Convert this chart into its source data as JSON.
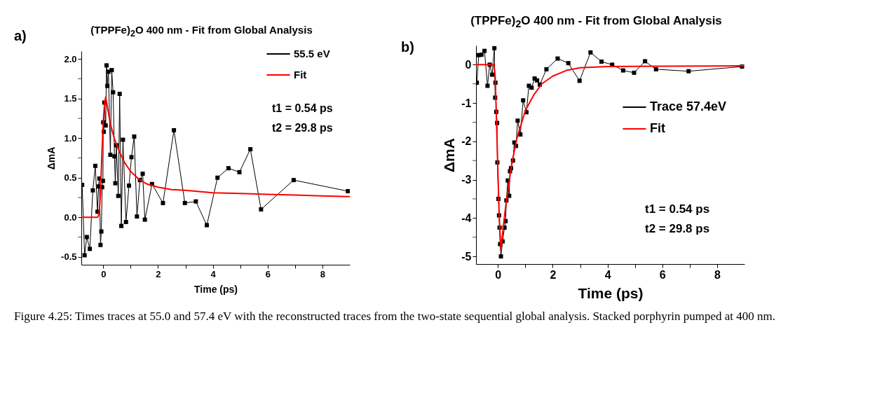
{
  "chart_data": [
    {
      "type": "line",
      "title": "(TPPFe)$_{2}$O 400 nm - Fit from Global Analysis",
      "ylabel": "ΔmA",
      "xlabel": "Time (ps)",
      "annotations": [
        "a)",
        "t1 = 0.54 ps",
        "t2 = 29.8 ps",
        "Figure 4.25: Times traces at 55.0 and 57.4 eV with the reconstructed traces from the two-state sequential global analysis. Stacked porphyrin pumped at 400 nm."
      ],
      "xlim": [
        -0.8,
        9
      ],
      "xticks": [
        0,
        {
          "value": 1,
          "label": null
        },
        2,
        {
          "value": 3,
          "label": null
        },
        4,
        {
          "value": 5,
          "label": null
        },
        6,
        {
          "value": 7,
          "label": null
        },
        8
      ],
      "ylim": [
        -0.6,
        2.1
      ],
      "yticks": [
        {
          "value": -0.5,
          "label": "-0.5"
        },
        {
          "value": -0.25,
          "label": null
        },
        {
          "value": 0,
          "label": "0.0"
        },
        {
          "value": 0.25,
          "label": null
        },
        {
          "value": 0.5,
          "label": "0.5"
        },
        {
          "value": 0.75,
          "label": null
        },
        {
          "value": 1,
          "label": "1.0"
        },
        {
          "value": 1.25,
          "label": null
        },
        {
          "value": 1.5,
          "label": "1.5"
        },
        {
          "value": 1.75,
          "label": null
        },
        {
          "value": 2,
          "label": "2.0"
        }
      ],
      "legend": "top right",
      "marker": "square",
      "grid": false,
      "series": [
        {
          "name": "55.5 eV",
          "color": "#000000",
          "x": [
            -0.77,
            -0.68,
            -0.6,
            -0.49,
            -0.38,
            -0.29,
            -0.21,
            -0.17,
            -0.14,
            -0.1,
            -0.07,
            -0.04,
            -0.01,
            0.0,
            0.02,
            0.04,
            0.09,
            0.12,
            0.15,
            0.19,
            0.26,
            0.31,
            0.36,
            0.41,
            0.44,
            0.48,
            0.55,
            0.6,
            0.66,
            0.72,
            0.83,
            0.94,
            1.03,
            1.13,
            1.23,
            1.34,
            1.44,
            1.52,
            1.78,
            2.18,
            2.58,
            2.98,
            3.38,
            3.78,
            4.17,
            4.57,
            4.97,
            5.37,
            5.76,
            6.95,
            8.93
          ],
          "values": [
            0.41,
            -0.48,
            -0.25,
            -0.4,
            0.34,
            0.65,
            0.07,
            0.39,
            0.49,
            -0.35,
            -0.18,
            0.38,
            0.46,
            1.2,
            1.08,
            1.45,
            1.16,
            1.92,
            1.66,
            1.84,
            0.79,
            1.86,
            1.58,
            0.77,
            0.43,
            0.91,
            0.27,
            1.56,
            -0.11,
            0.98,
            -0.06,
            0.4,
            0.76,
            1.02,
            0.01,
            0.47,
            0.55,
            -0.03,
            0.42,
            0.18,
            1.1,
            0.18,
            0.2,
            -0.1,
            0.5,
            0.62,
            0.57,
            0.86,
            0.1,
            0.47,
            0.33
          ]
        },
        {
          "name": "Fit",
          "color": "#ff0000",
          "marker": "none",
          "x": [
            -0.8,
            -0.2,
            -0.15,
            -0.1,
            -0.05,
            0,
            0.05,
            0.09,
            0.15,
            0.25,
            0.4,
            0.6,
            0.8,
            1.0,
            1.3,
            1.6,
            2,
            2.5,
            3,
            4,
            5,
            6,
            7,
            8,
            9
          ],
          "values": [
            0,
            0,
            0.05,
            0.3,
            0.8,
            1.2,
            1.45,
            1.52,
            1.4,
            1.2,
            1.0,
            0.82,
            0.68,
            0.58,
            0.48,
            0.42,
            0.38,
            0.35,
            0.34,
            0.31,
            0.3,
            0.29,
            0.28,
            0.27,
            0.26
          ]
        }
      ]
    },
    {
      "type": "line",
      "title": "(TPPFe)$_{2}$O 400 nm - Fit from Global Analysis",
      "ylabel": "ΔmA",
      "xlabel": "Time (ps)",
      "annotations": [
        "b)",
        "t1 = 0.54 ps",
        "t2 = 29.8 ps"
      ],
      "xlim": [
        -0.8,
        9
      ],
      "xticks": [
        0,
        {
          "value": 1,
          "label": null
        },
        2,
        {
          "value": 3,
          "label": null
        },
        4,
        {
          "value": 5,
          "label": null
        },
        6,
        {
          "value": 7,
          "label": null
        },
        8
      ],
      "ylim": [
        -5.2,
        0.5
      ],
      "yticks": [
        -5,
        {
          "value": -4.5,
          "label": null
        },
        -4,
        {
          "value": -3.5,
          "label": null
        },
        -3,
        {
          "value": -2.5,
          "label": null
        },
        -2,
        {
          "value": -1.5,
          "label": null
        },
        -1,
        {
          "value": -0.5,
          "label": null
        },
        0
      ],
      "legend": "right",
      "marker": "square",
      "grid": false,
      "series": [
        {
          "name": "Trace 57.4eV",
          "color": "#000000",
          "x": [
            -0.77,
            -0.7,
            -0.6,
            -0.49,
            -0.38,
            -0.3,
            -0.21,
            -0.13,
            -0.1,
            -0.09,
            -0.06,
            -0.03,
            -0.02,
            0.02,
            0.04,
            0.06,
            0.08,
            0.11,
            0.17,
            0.24,
            0.28,
            0.31,
            0.36,
            0.41,
            0.44,
            0.48,
            0.55,
            0.6,
            0.66,
            0.72,
            0.82,
            0.92,
            1.04,
            1.13,
            1.23,
            1.34,
            1.43,
            1.53,
            1.77,
            2.18,
            2.57,
            2.98,
            3.38,
            3.78,
            4.17,
            4.57,
            4.97,
            5.37,
            5.77,
            6.96,
            8.91
          ],
          "values": [
            -0.47,
            0.25,
            0.26,
            0.36,
            -0.55,
            0.0,
            -0.26,
            0.43,
            -0.86,
            -0.47,
            -1.23,
            -1.52,
            -2.55,
            -3.5,
            -3.93,
            -4.25,
            -4.68,
            -5.0,
            -4.61,
            -4.25,
            -4.08,
            -3.54,
            -3.02,
            -3.42,
            -2.78,
            -2.7,
            -2.5,
            -2.03,
            -2.12,
            -1.46,
            -1.82,
            -0.93,
            -1.24,
            -0.55,
            -0.6,
            -0.36,
            -0.41,
            -0.52,
            -0.12,
            0.16,
            0.04,
            -0.42,
            0.32,
            0.08,
            0.0,
            -0.15,
            -0.21,
            0.09,
            -0.12,
            -0.17,
            -0.05
          ]
        },
        {
          "name": "Fit",
          "color": "#ff0000",
          "marker": "none",
          "x": [
            -0.8,
            -0.15,
            -0.1,
            -0.05,
            0,
            0.05,
            0.11,
            0.2,
            0.3,
            0.5,
            0.7,
            1,
            1.3,
            1.6,
            2,
            2.5,
            3,
            4,
            6,
            9
          ],
          "values": [
            0,
            0,
            -0.3,
            -1.5,
            -2.8,
            -4.0,
            -4.83,
            -4.2,
            -3.6,
            -2.6,
            -1.9,
            -1.2,
            -0.8,
            -0.5,
            -0.3,
            -0.15,
            -0.08,
            -0.05,
            -0.04,
            -0.03
          ]
        }
      ]
    }
  ]
}
